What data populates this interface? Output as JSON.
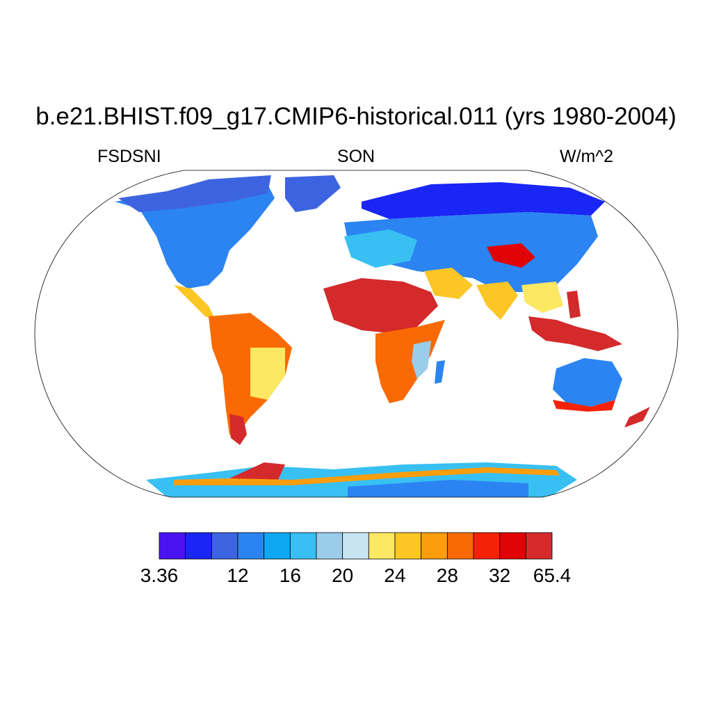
{
  "title": "b.e21.BHIST.f09_g17.CMIP6-historical.011 (yrs 1980-2004)",
  "left_subtitle": "FSDSNI",
  "center_subtitle": "SON",
  "right_subtitle": "W/m^2",
  "colorbar": {
    "colors": [
      "#4a14f2",
      "#1926f5",
      "#3d64e0",
      "#2b84f1",
      "#0ea7f4",
      "#38c0f3",
      "#9bcdea",
      "#c8e4f3",
      "#fde863",
      "#fcc625",
      "#fb9d0c",
      "#f96a04",
      "#f52208",
      "#e00204",
      "#d42a2c"
    ],
    "labels": [
      "3.36",
      "12",
      "16",
      "20",
      "24",
      "28",
      "32",
      "65.4"
    ],
    "label_positions": [
      0,
      3,
      5,
      7,
      9,
      11,
      13,
      15
    ]
  },
  "map": {
    "projection": "Robinson",
    "ocean_color": "#ffffff"
  }
}
